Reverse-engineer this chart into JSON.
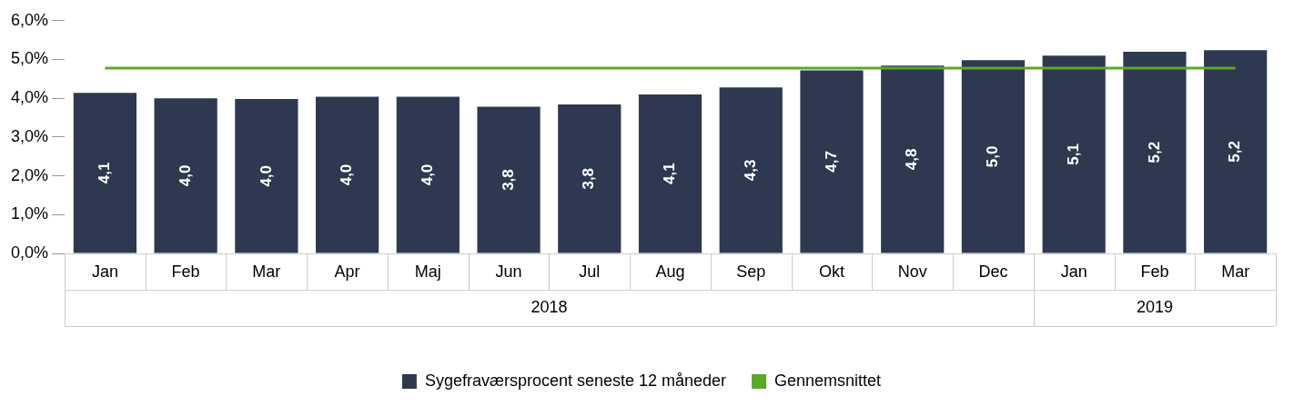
{
  "chart_data": {
    "type": "bar",
    "categories": [
      "Jan",
      "Feb",
      "Mar",
      "Apr",
      "Maj",
      "Jun",
      "Jul",
      "Aug",
      "Sep",
      "Okt",
      "Nov",
      "Dec",
      "Jan",
      "Feb",
      "Mar"
    ],
    "series": [
      {
        "name": "Sygefraværsprocent seneste 12 måneder",
        "color": "#2e3850",
        "values": [
          4.14,
          4.0,
          3.98,
          4.04,
          4.04,
          3.78,
          3.84,
          4.1,
          4.28,
          4.72,
          4.84,
          4.98,
          5.1,
          5.2,
          5.24
        ],
        "value_labels": [
          "4,1",
          "4,0",
          "4,0",
          "4,0",
          "4,0",
          "3,8",
          "3,8",
          "4,1",
          "4,3",
          "4,7",
          "4,8",
          "5,0",
          "5,1",
          "5,2",
          "5,2"
        ]
      },
      {
        "name": "Gennemsnittet",
        "type": "line",
        "color": "#5ba82a",
        "values": [
          4.78,
          4.78,
          4.78,
          4.78,
          4.78,
          4.78,
          4.78,
          4.78,
          4.78,
          4.78,
          4.78,
          4.78,
          4.78,
          4.78,
          4.78
        ]
      }
    ],
    "ylim": [
      0,
      6
    ],
    "yticks": [
      {
        "value": 0,
        "label": "0,0%"
      },
      {
        "value": 1,
        "label": "1,0%"
      },
      {
        "value": 2,
        "label": "2,0%"
      },
      {
        "value": 3,
        "label": "3,0%"
      },
      {
        "value": 4,
        "label": "4,0%"
      },
      {
        "value": 5,
        "label": "5,0%"
      },
      {
        "value": 6,
        "label": "6,0%"
      }
    ],
    "annotations": [
      "2018",
      "2019"
    ],
    "grid": false,
    "legend": "bottom",
    "marker": "none"
  }
}
